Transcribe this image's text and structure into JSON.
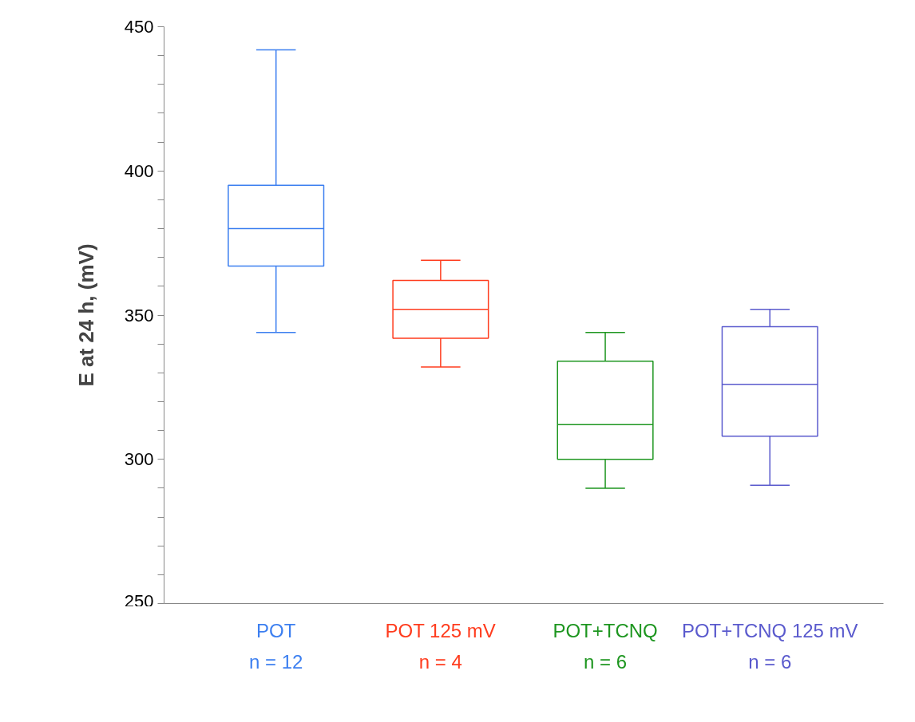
{
  "chart_data": {
    "type": "box",
    "ylabel": "E at 24 h, (mV)",
    "categories": [
      "POT\nn = 12",
      "POT 125 mV\nn = 4",
      "POT+TCNQ\nn = 6",
      "POT+TCNQ 125 mV\nn = 6"
    ],
    "colors": [
      "#3c7ff0",
      "#ff3c1e",
      "#1e9620",
      "#5a5acd"
    ],
    "boxes": [
      {
        "low": 344,
        "q1": 367,
        "median": 380,
        "q3": 395,
        "high": 442
      },
      {
        "low": 332,
        "q1": 342,
        "median": 352,
        "q3": 362,
        "high": 369
      },
      {
        "low": 290,
        "q1": 300,
        "median": 312,
        "q3": 334,
        "high": 344
      },
      {
        "low": 291,
        "q1": 308,
        "median": 326,
        "q3": 346,
        "high": 352
      }
    ],
    "ylim": [
      250,
      450
    ],
    "yticks": [
      250,
      {
        "value": 260,
        "label": null
      },
      {
        "value": 270,
        "label": null
      },
      {
        "value": 280,
        "label": null
      },
      {
        "value": 290,
        "label": null
      },
      300,
      {
        "value": 310,
        "label": null
      },
      {
        "value": 320,
        "label": null
      },
      {
        "value": 330,
        "label": null
      },
      {
        "value": 340,
        "label": null
      },
      350,
      {
        "value": 360,
        "label": null
      },
      {
        "value": 370,
        "label": null
      },
      {
        "value": 380,
        "label": null
      },
      {
        "value": 390,
        "label": null
      },
      400,
      {
        "value": 410,
        "label": null
      },
      {
        "value": 420,
        "label": null
      },
      {
        "value": 430,
        "label": null
      },
      {
        "value": 440,
        "label": null
      },
      450
    ],
    "grid": false
  }
}
